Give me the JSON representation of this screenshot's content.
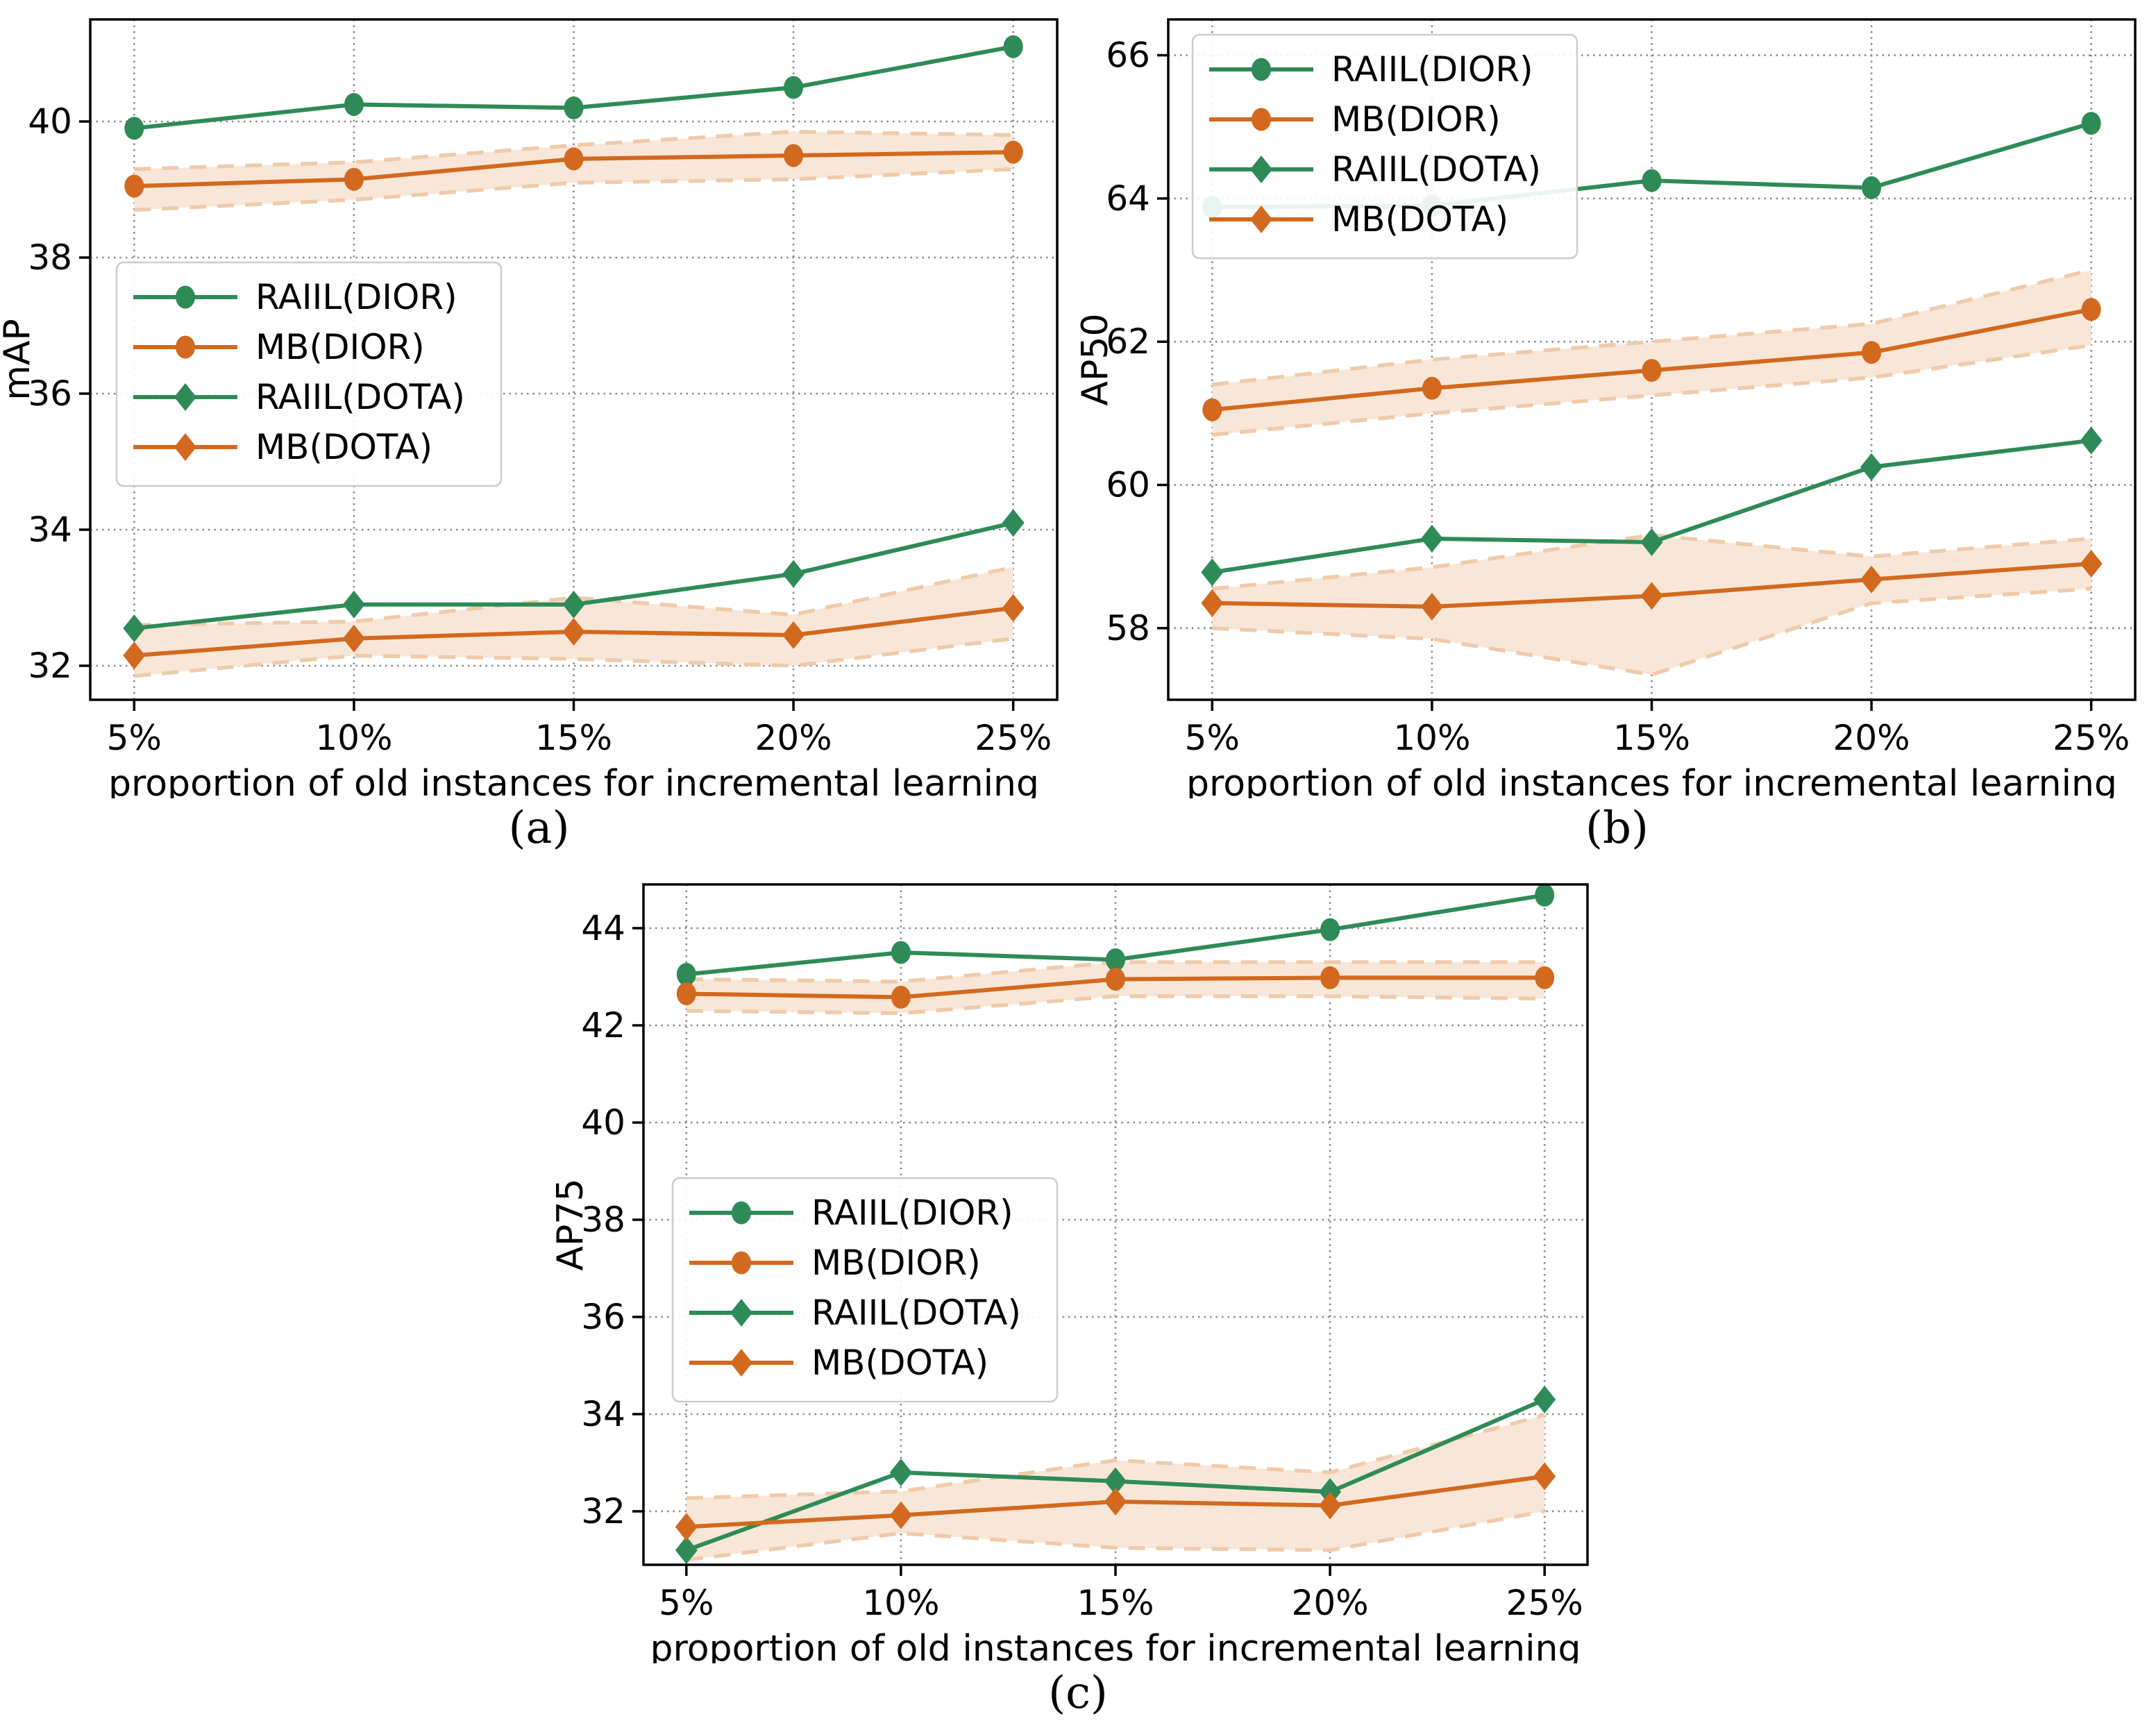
{
  "figure": {
    "xlabel": "proportion of old instances for incremental learning",
    "x_tick_labels": [
      "5%",
      "10%",
      "15%",
      "20%",
      "25%"
    ],
    "colors": {
      "raiil_green": "#2e8b57",
      "mb_orange": "#d2691e",
      "band_fill": "#f8e7d8",
      "band_edge": "#efcbab",
      "grid": "#8a8a8a",
      "spine": "#000000"
    }
  },
  "chart_data": [
    {
      "type": "line",
      "caption": "(a)",
      "ylabel": "mAP",
      "xlabel": "proportion of old instances for incremental learning",
      "x": [
        5,
        10,
        15,
        20,
        25
      ],
      "x_tick_labels": [
        "5%",
        "10%",
        "15%",
        "20%",
        "25%"
      ],
      "xlim": [
        4,
        26
      ],
      "yticks": [
        32,
        34,
        36,
        38,
        40
      ],
      "ylim": [
        31.5,
        41.5
      ],
      "grid": true,
      "legend_position": "middle-left",
      "series": [
        {
          "name": "RAIIL(DIOR)",
          "color": "#2e8b57",
          "marker": "circle",
          "values": [
            39.9,
            40.25,
            40.2,
            40.5,
            41.1
          ]
        },
        {
          "name": "MB(DIOR)",
          "color": "#d2691e",
          "marker": "circle",
          "values": [
            39.05,
            39.15,
            39.45,
            39.5,
            39.55
          ],
          "band_lower": [
            38.7,
            38.85,
            39.1,
            39.15,
            39.3
          ],
          "band_upper": [
            39.3,
            39.4,
            39.65,
            39.85,
            39.8
          ]
        },
        {
          "name": "RAIIL(DOTA)",
          "color": "#2e8b57",
          "marker": "diamond",
          "values": [
            32.55,
            32.9,
            32.9,
            33.35,
            34.1
          ]
        },
        {
          "name": "MB(DOTA)",
          "color": "#d2691e",
          "marker": "diamond",
          "values": [
            32.15,
            32.4,
            32.5,
            32.45,
            32.85
          ],
          "band_lower": [
            31.85,
            32.15,
            32.1,
            32.0,
            32.4
          ],
          "band_upper": [
            32.6,
            32.65,
            33.0,
            32.75,
            33.45
          ]
        }
      ]
    },
    {
      "type": "line",
      "caption": "(b)",
      "ylabel": "AP50",
      "xlabel": "proportion of old instances for incremental learning",
      "x": [
        5,
        10,
        15,
        20,
        25
      ],
      "x_tick_labels": [
        "5%",
        "10%",
        "15%",
        "20%",
        "25%"
      ],
      "xlim": [
        4,
        26
      ],
      "yticks": [
        58,
        60,
        62,
        64,
        66
      ],
      "ylim": [
        57.0,
        66.5
      ],
      "grid": true,
      "legend_position": "top-left",
      "series": [
        {
          "name": "RAIIL(DIOR)",
          "color": "#2e8b57",
          "marker": "circle",
          "values": [
            63.88,
            63.9,
            64.25,
            64.15,
            65.05
          ]
        },
        {
          "name": "MB(DIOR)",
          "color": "#d2691e",
          "marker": "circle",
          "values": [
            61.05,
            61.35,
            61.6,
            61.85,
            62.45
          ],
          "band_lower": [
            60.7,
            61.0,
            61.25,
            61.5,
            61.95
          ],
          "band_upper": [
            61.4,
            61.75,
            62.0,
            62.25,
            63.0
          ]
        },
        {
          "name": "RAIIL(DOTA)",
          "color": "#2e8b57",
          "marker": "diamond",
          "values": [
            58.78,
            59.25,
            59.2,
            60.25,
            60.62
          ]
        },
        {
          "name": "MB(DOTA)",
          "color": "#d2691e",
          "marker": "diamond",
          "values": [
            58.35,
            58.3,
            58.45,
            58.68,
            58.9
          ],
          "band_lower": [
            58.0,
            57.85,
            57.35,
            58.35,
            58.55
          ],
          "band_upper": [
            58.55,
            58.85,
            59.3,
            59.0,
            59.25
          ]
        }
      ]
    },
    {
      "type": "line",
      "caption": "(c)",
      "ylabel": "AP75",
      "xlabel": "proportion of old instances for incremental learning",
      "x": [
        5,
        10,
        15,
        20,
        25
      ],
      "x_tick_labels": [
        "5%",
        "10%",
        "15%",
        "20%",
        "25%"
      ],
      "xlim": [
        4,
        26
      ],
      "yticks": [
        32,
        34,
        36,
        38,
        40,
        42,
        44
      ],
      "ylim": [
        30.9,
        44.9
      ],
      "grid": true,
      "legend_position": "middle-left",
      "series": [
        {
          "name": "RAIIL(DIOR)",
          "color": "#2e8b57",
          "marker": "circle",
          "values": [
            43.05,
            43.5,
            43.35,
            43.97,
            44.68
          ]
        },
        {
          "name": "MB(DIOR)",
          "color": "#d2691e",
          "marker": "circle",
          "values": [
            42.65,
            42.58,
            42.95,
            42.98,
            42.98
          ],
          "band_lower": [
            42.3,
            42.25,
            42.6,
            42.6,
            42.55
          ],
          "band_upper": [
            42.95,
            42.9,
            43.3,
            43.3,
            43.3
          ]
        },
        {
          "name": "RAIIL(DOTA)",
          "color": "#2e8b57",
          "marker": "diamond",
          "values": [
            31.2,
            32.8,
            32.62,
            32.4,
            34.3
          ]
        },
        {
          "name": "MB(DOTA)",
          "color": "#d2691e",
          "marker": "diamond",
          "values": [
            31.68,
            31.92,
            32.2,
            32.12,
            32.72
          ],
          "band_lower": [
            31.0,
            31.55,
            31.25,
            31.2,
            32.0
          ],
          "band_upper": [
            32.27,
            32.41,
            33.05,
            32.8,
            33.98
          ]
        }
      ]
    }
  ]
}
